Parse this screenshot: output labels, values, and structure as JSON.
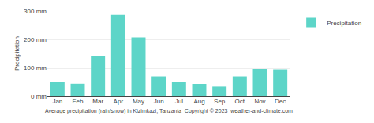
{
  "chart_data": {
    "type": "bar",
    "categories": [
      "Jan",
      "Feb",
      "Mar",
      "Apr",
      "May",
      "Jun",
      "Jul",
      "Aug",
      "Sep",
      "Oct",
      "Nov",
      "Dec"
    ],
    "series": [
      {
        "name": "Precipitation",
        "color": "#5dd5c8",
        "values": [
          50,
          45,
          142,
          287,
          207,
          68,
          50,
          42,
          35,
          68,
          95,
          93
        ]
      }
    ],
    "ylabel": "Precipitation",
    "xlabel": "Average precipitation (rain/snow) in Kizimkazi, Tanzania  Copyright © 2023  weather-and-climate.com",
    "ylim": [
      0,
      300
    ],
    "yticks": [
      {
        "value": 0,
        "label": "0 mm"
      },
      {
        "value": 100,
        "label": "100 mm"
      },
      {
        "value": 200,
        "label": "200 mm"
      },
      {
        "value": 300,
        "label": "300 mm"
      }
    ],
    "grid": true,
    "legend": "right"
  }
}
